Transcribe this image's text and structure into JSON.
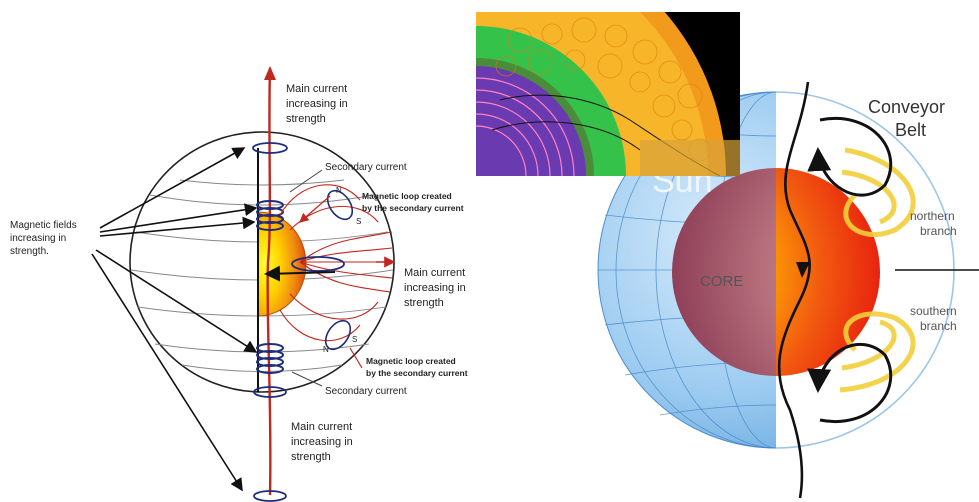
{
  "left_diagram": {
    "main_current_top": [
      "Main current",
      "increasing in",
      "strength"
    ],
    "secondary_current_top": "Secondary current",
    "magnetic_fields": [
      "Magnetic fields",
      "increasing in",
      "strength."
    ],
    "n_pole_top": "N",
    "s_pole_top": "S",
    "magnetic_loop_top": [
      "Magnetic loop created",
      "by the secondary current"
    ],
    "main_current_right": [
      "Main current",
      "increasing in",
      "strength"
    ],
    "n_pole_bottom": "N",
    "s_pole_bottom": "S",
    "magnetic_loop_bottom": [
      "Magnetic loop created",
      "by the secondary current"
    ],
    "secondary_current_bottom": "Secondary current",
    "main_current_bottom": [
      "Main current",
      "increasing in",
      "strength"
    ]
  },
  "right_diagram": {
    "sun_label": "Sun",
    "core_label": "CORE",
    "conveyor_belt": [
      "Conveyor",
      "Belt"
    ],
    "northern_branch": [
      "northern",
      "branch"
    ],
    "southern_branch": [
      "southern",
      "branch"
    ]
  },
  "colors": {
    "current_red": "#c0271d",
    "core_yellow": "#ffee00",
    "core_orange": "#ee5500",
    "globe_blue": "#6fb0e6",
    "belt_yellow": "#f2cf3a"
  }
}
